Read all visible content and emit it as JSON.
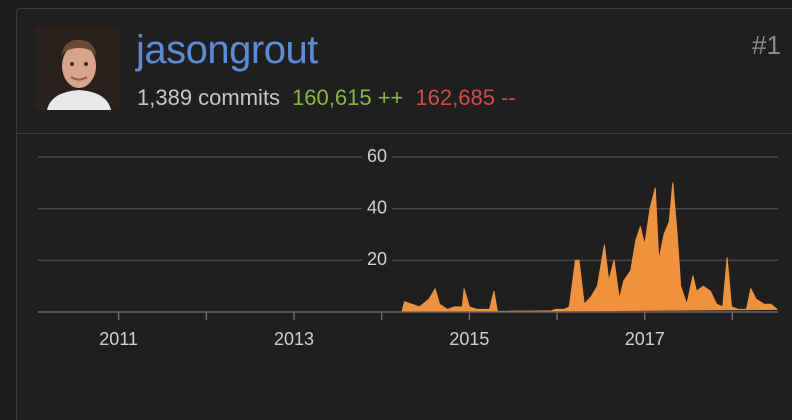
{
  "header": {
    "username": "jasongrout",
    "commits": "1,389 commits",
    "additions": "160,615 ++",
    "deletions": "162,685 --",
    "rank": "#1"
  },
  "chart_data": {
    "type": "area",
    "color": "#f0923a",
    "x": [
      2014.23,
      2014.26,
      2014.43,
      2014.54,
      2014.61,
      2014.66,
      2014.75,
      2014.83,
      2014.92,
      2014.94,
      2015.0,
      2015.09,
      2015.23,
      2015.28,
      2015.32,
      2015.91,
      2015.98,
      2016.08,
      2016.14,
      2016.21,
      2016.25,
      2016.31,
      2016.39,
      2016.46,
      2016.54,
      2016.59,
      2016.65,
      2016.71,
      2016.76,
      2016.84,
      2016.9,
      2016.95,
      2017.0,
      2017.06,
      2017.12,
      2017.16,
      2017.22,
      2017.28,
      2017.32,
      2017.37,
      2017.41,
      2017.48,
      2017.55,
      2017.59,
      2017.67,
      2017.75,
      2017.82,
      2017.89,
      2017.94,
      2017.99,
      2018.07,
      2018.16,
      2018.21,
      2018.27,
      2018.36,
      2018.44,
      2018.51
    ],
    "values": [
      0,
      4,
      2,
      5,
      9,
      3,
      1,
      2,
      2,
      9,
      2,
      1,
      1,
      8,
      0,
      0,
      1,
      1,
      2,
      20,
      20,
      3,
      6,
      10,
      26,
      12,
      20,
      5,
      12,
      16,
      28,
      33,
      26,
      40,
      48,
      20,
      30,
      35,
      50,
      30,
      10,
      3,
      14,
      8,
      10,
      8,
      3,
      2,
      21,
      2,
      1,
      1,
      9,
      5,
      3,
      3,
      1
    ],
    "xlim": [
      2010.08,
      2018.52
    ],
    "xticks": [
      2011,
      2013,
      2015,
      2017
    ],
    "ylim": [
      0,
      60
    ],
    "yticks": [
      20,
      40,
      60
    ],
    "grid": true
  }
}
